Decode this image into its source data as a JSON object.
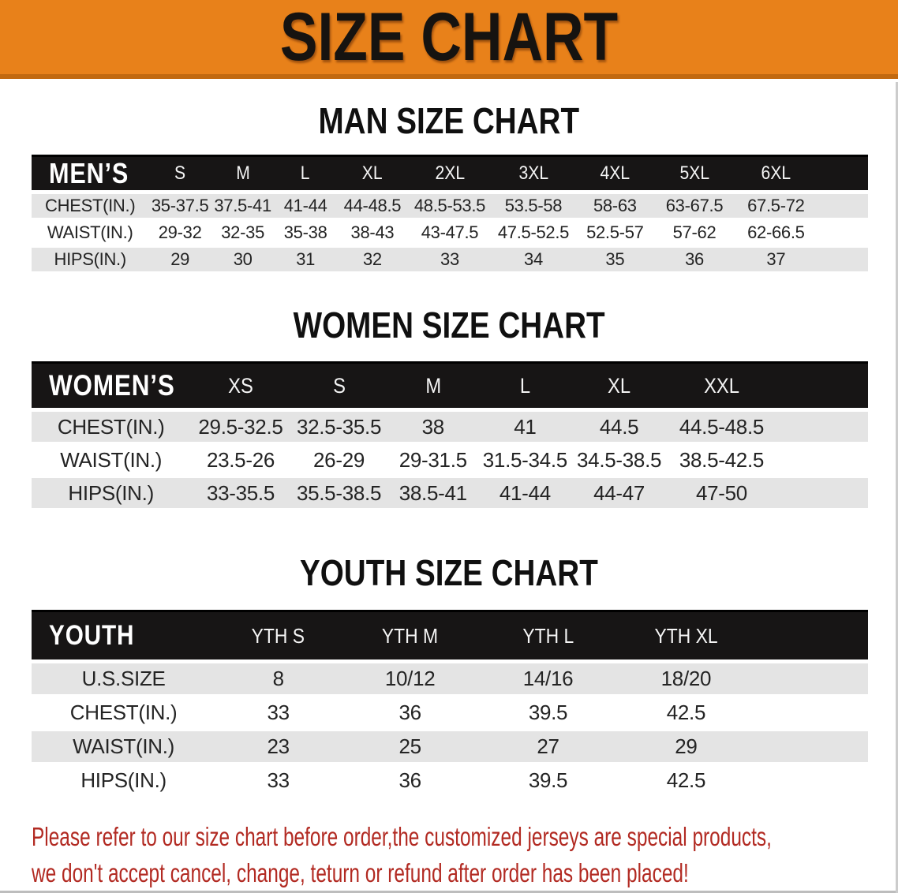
{
  "banner": {
    "title": "SIZE CHART",
    "bg_color": "#E8811A",
    "edge_color": "#C2690F",
    "title_color": "#161310"
  },
  "sections": [
    {
      "id": "men",
      "heading": "MAN SIZE CHART",
      "table": {
        "corner_label": "MEN’S",
        "columns": [
          "S",
          "M",
          "L",
          "XL",
          "2XL",
          "3XL",
          "4XL",
          "5XL",
          "6XL"
        ],
        "rows": [
          {
            "label": "CHEST(IN.)",
            "values": [
              "35-37.5",
              "37.5-41",
              "41-44",
              "44-48.5",
              "48.5-53.5",
              "53.5-58",
              "58-63",
              "63-67.5",
              "67.5-72"
            ]
          },
          {
            "label": "WAIST(IN.)",
            "values": [
              "29-32",
              "32-35",
              "35-38",
              "38-43",
              "43-47.5",
              "47.5-52.5",
              "52.5-57",
              "57-62",
              "62-66.5"
            ]
          },
          {
            "label": "HIPS(IN.)",
            "values": [
              "29",
              "30",
              "31",
              "32",
              "33",
              "34",
              "35",
              "36",
              "37"
            ]
          }
        ]
      }
    },
    {
      "id": "women",
      "heading": "WOMEN SIZE CHART",
      "table": {
        "corner_label": "WOMEN’S",
        "columns": [
          "XS",
          "S",
          "M",
          "L",
          "XL",
          "XXL"
        ],
        "rows": [
          {
            "label": "CHEST(IN.)",
            "values": [
              "29.5-32.5",
              "32.5-35.5",
              "38",
              "41",
              "44.5",
              "44.5-48.5"
            ]
          },
          {
            "label": "WAIST(IN.)",
            "values": [
              "23.5-26",
              "26-29",
              "29-31.5",
              "31.5-34.5",
              "34.5-38.5",
              "38.5-42.5"
            ]
          },
          {
            "label": "HIPS(IN.)",
            "values": [
              "33-35.5",
              "35.5-38.5",
              "38.5-41",
              "41-44",
              "44-47",
              "47-50"
            ]
          }
        ]
      }
    },
    {
      "id": "youth",
      "heading": "YOUTH SIZE CHART",
      "table": {
        "corner_label": "YOUTH",
        "columns": [
          "YTH S",
          "YTH M",
          "YTH L",
          "YTH XL"
        ],
        "rows": [
          {
            "label": "U.S.SIZE",
            "values": [
              "8",
              "10/12",
              "14/16",
              "18/20"
            ]
          },
          {
            "label": "CHEST(IN.)",
            "values": [
              "33",
              "36",
              "39.5",
              "42.5"
            ]
          },
          {
            "label": "WAIST(IN.)",
            "values": [
              "23",
              "25",
              "27",
              "29"
            ]
          },
          {
            "label": "HIPS(IN.)",
            "values": [
              "33",
              "36",
              "39.5",
              "42.5"
            ]
          }
        ]
      }
    }
  ],
  "footer": {
    "line1": "Please refer to our size chart before order,the customized jerseys are special products,",
    "line2": "we don't accept cancel, change, teturn or refund after order has been placed!",
    "text_color": "#B22A22"
  },
  "colors": {
    "header_bar": "#171515",
    "stripe_gray": "#E4E4E4",
    "body_text": "#242424"
  }
}
